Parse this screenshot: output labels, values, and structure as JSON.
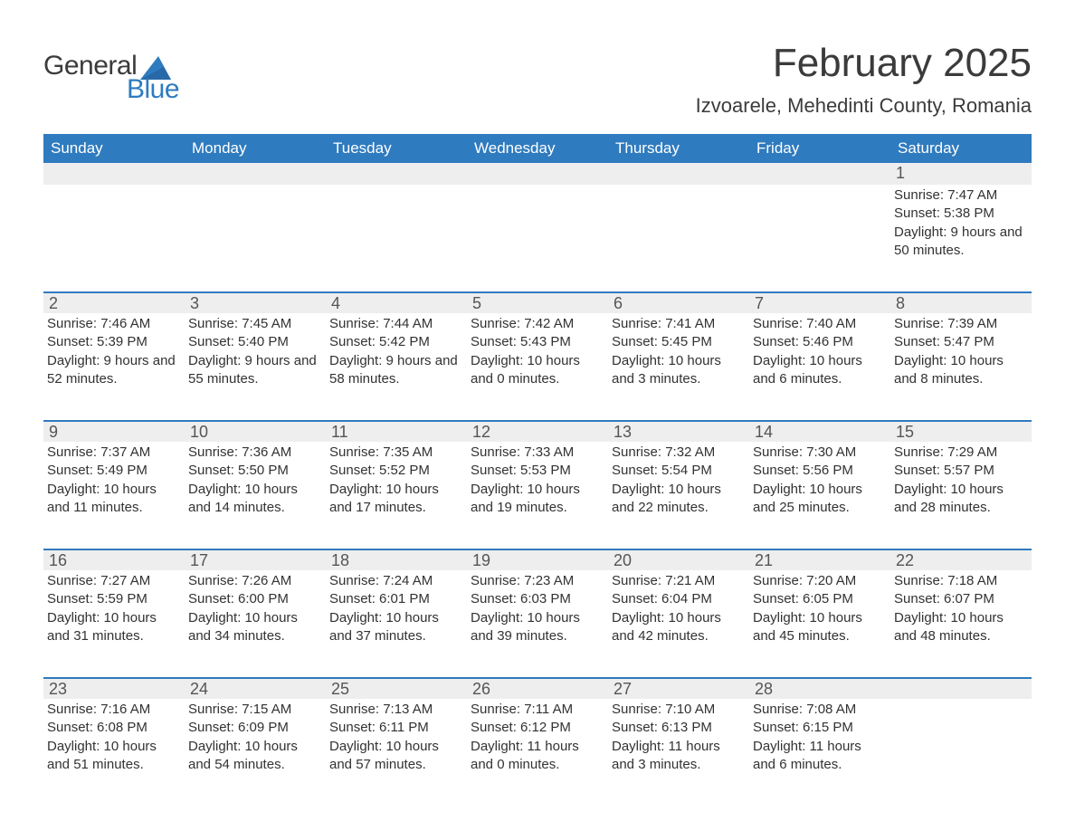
{
  "logo": {
    "text1": "General",
    "text2": "Blue"
  },
  "title": "February 2025",
  "location": "Izvoarele, Mehedinti County, Romania",
  "colors": {
    "brand": "#2f7bbf",
    "row_bg": "#eeeeee",
    "background": "#ffffff",
    "text": "#333333"
  },
  "weekdays": [
    "Sunday",
    "Monday",
    "Tuesday",
    "Wednesday",
    "Thursday",
    "Friday",
    "Saturday"
  ],
  "weeks": [
    {
      "days": [
        {
          "n": "",
          "sunrise": "",
          "sunset": "",
          "daylight": ""
        },
        {
          "n": "",
          "sunrise": "",
          "sunset": "",
          "daylight": ""
        },
        {
          "n": "",
          "sunrise": "",
          "sunset": "",
          "daylight": ""
        },
        {
          "n": "",
          "sunrise": "",
          "sunset": "",
          "daylight": ""
        },
        {
          "n": "",
          "sunrise": "",
          "sunset": "",
          "daylight": ""
        },
        {
          "n": "",
          "sunrise": "",
          "sunset": "",
          "daylight": ""
        },
        {
          "n": "1",
          "sunrise": "Sunrise: 7:47 AM",
          "sunset": "Sunset: 5:38 PM",
          "daylight": "Daylight: 9 hours and 50 minutes."
        }
      ]
    },
    {
      "days": [
        {
          "n": "2",
          "sunrise": "Sunrise: 7:46 AM",
          "sunset": "Sunset: 5:39 PM",
          "daylight": "Daylight: 9 hours and 52 minutes."
        },
        {
          "n": "3",
          "sunrise": "Sunrise: 7:45 AM",
          "sunset": "Sunset: 5:40 PM",
          "daylight": "Daylight: 9 hours and 55 minutes."
        },
        {
          "n": "4",
          "sunrise": "Sunrise: 7:44 AM",
          "sunset": "Sunset: 5:42 PM",
          "daylight": "Daylight: 9 hours and 58 minutes."
        },
        {
          "n": "5",
          "sunrise": "Sunrise: 7:42 AM",
          "sunset": "Sunset: 5:43 PM",
          "daylight": "Daylight: 10 hours and 0 minutes."
        },
        {
          "n": "6",
          "sunrise": "Sunrise: 7:41 AM",
          "sunset": "Sunset: 5:45 PM",
          "daylight": "Daylight: 10 hours and 3 minutes."
        },
        {
          "n": "7",
          "sunrise": "Sunrise: 7:40 AM",
          "sunset": "Sunset: 5:46 PM",
          "daylight": "Daylight: 10 hours and 6 minutes."
        },
        {
          "n": "8",
          "sunrise": "Sunrise: 7:39 AM",
          "sunset": "Sunset: 5:47 PM",
          "daylight": "Daylight: 10 hours and 8 minutes."
        }
      ]
    },
    {
      "days": [
        {
          "n": "9",
          "sunrise": "Sunrise: 7:37 AM",
          "sunset": "Sunset: 5:49 PM",
          "daylight": "Daylight: 10 hours and 11 minutes."
        },
        {
          "n": "10",
          "sunrise": "Sunrise: 7:36 AM",
          "sunset": "Sunset: 5:50 PM",
          "daylight": "Daylight: 10 hours and 14 minutes."
        },
        {
          "n": "11",
          "sunrise": "Sunrise: 7:35 AM",
          "sunset": "Sunset: 5:52 PM",
          "daylight": "Daylight: 10 hours and 17 minutes."
        },
        {
          "n": "12",
          "sunrise": "Sunrise: 7:33 AM",
          "sunset": "Sunset: 5:53 PM",
          "daylight": "Daylight: 10 hours and 19 minutes."
        },
        {
          "n": "13",
          "sunrise": "Sunrise: 7:32 AM",
          "sunset": "Sunset: 5:54 PM",
          "daylight": "Daylight: 10 hours and 22 minutes."
        },
        {
          "n": "14",
          "sunrise": "Sunrise: 7:30 AM",
          "sunset": "Sunset: 5:56 PM",
          "daylight": "Daylight: 10 hours and 25 minutes."
        },
        {
          "n": "15",
          "sunrise": "Sunrise: 7:29 AM",
          "sunset": "Sunset: 5:57 PM",
          "daylight": "Daylight: 10 hours and 28 minutes."
        }
      ]
    },
    {
      "days": [
        {
          "n": "16",
          "sunrise": "Sunrise: 7:27 AM",
          "sunset": "Sunset: 5:59 PM",
          "daylight": "Daylight: 10 hours and 31 minutes."
        },
        {
          "n": "17",
          "sunrise": "Sunrise: 7:26 AM",
          "sunset": "Sunset: 6:00 PM",
          "daylight": "Daylight: 10 hours and 34 minutes."
        },
        {
          "n": "18",
          "sunrise": "Sunrise: 7:24 AM",
          "sunset": "Sunset: 6:01 PM",
          "daylight": "Daylight: 10 hours and 37 minutes."
        },
        {
          "n": "19",
          "sunrise": "Sunrise: 7:23 AM",
          "sunset": "Sunset: 6:03 PM",
          "daylight": "Daylight: 10 hours and 39 minutes."
        },
        {
          "n": "20",
          "sunrise": "Sunrise: 7:21 AM",
          "sunset": "Sunset: 6:04 PM",
          "daylight": "Daylight: 10 hours and 42 minutes."
        },
        {
          "n": "21",
          "sunrise": "Sunrise: 7:20 AM",
          "sunset": "Sunset: 6:05 PM",
          "daylight": "Daylight: 10 hours and 45 minutes."
        },
        {
          "n": "22",
          "sunrise": "Sunrise: 7:18 AM",
          "sunset": "Sunset: 6:07 PM",
          "daylight": "Daylight: 10 hours and 48 minutes."
        }
      ]
    },
    {
      "days": [
        {
          "n": "23",
          "sunrise": "Sunrise: 7:16 AM",
          "sunset": "Sunset: 6:08 PM",
          "daylight": "Daylight: 10 hours and 51 minutes."
        },
        {
          "n": "24",
          "sunrise": "Sunrise: 7:15 AM",
          "sunset": "Sunset: 6:09 PM",
          "daylight": "Daylight: 10 hours and 54 minutes."
        },
        {
          "n": "25",
          "sunrise": "Sunrise: 7:13 AM",
          "sunset": "Sunset: 6:11 PM",
          "daylight": "Daylight: 10 hours and 57 minutes."
        },
        {
          "n": "26",
          "sunrise": "Sunrise: 7:11 AM",
          "sunset": "Sunset: 6:12 PM",
          "daylight": "Daylight: 11 hours and 0 minutes."
        },
        {
          "n": "27",
          "sunrise": "Sunrise: 7:10 AM",
          "sunset": "Sunset: 6:13 PM",
          "daylight": "Daylight: 11 hours and 3 minutes."
        },
        {
          "n": "28",
          "sunrise": "Sunrise: 7:08 AM",
          "sunset": "Sunset: 6:15 PM",
          "daylight": "Daylight: 11 hours and 6 minutes."
        },
        {
          "n": "",
          "sunrise": "",
          "sunset": "",
          "daylight": ""
        }
      ]
    }
  ]
}
